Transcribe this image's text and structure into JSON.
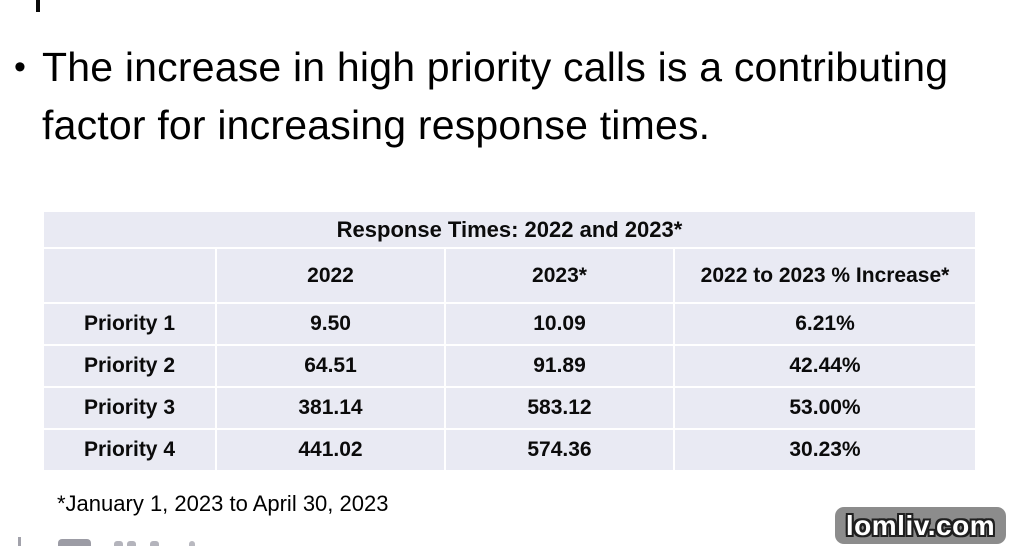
{
  "slide": {
    "bullet_marker": "•",
    "bullet_text": "The increase in high priority calls is a contributing factor for increasing response times.",
    "footnote": "*January 1, 2023 to April 30, 2023"
  },
  "table": {
    "title": "Response Times: 2022 and 2023*",
    "columns": [
      "",
      "2022",
      "2023*",
      "2022 to 2023 % Increase*"
    ],
    "rows": [
      [
        "Priority 1",
        "9.50",
        "10.09",
        "6.21%"
      ],
      [
        "Priority 2",
        "64.51",
        "91.89",
        "42.44%"
      ],
      [
        "Priority 3",
        "381.14",
        "583.12",
        "53.00%"
      ],
      [
        "Priority 4",
        "441.02",
        "574.36",
        "30.23%"
      ]
    ]
  },
  "watermark": {
    "label": "lomliv.com",
    "background": "#8c8c8c"
  },
  "colors": {
    "table_cell_bg": "#e9eaf3",
    "grid_line": "#ffffff",
    "text": "#000000"
  },
  "chart_data": {
    "type": "table",
    "title": "Response Times: 2022 and 2023*",
    "columns": [
      "",
      "2022",
      "2023*",
      "2022 to 2023 % Increase*"
    ],
    "rows": [
      [
        "Priority 1",
        "9.50",
        "10.09",
        "6.21%"
      ],
      [
        "Priority 2",
        "64.51",
        "91.89",
        "42.44%"
      ],
      [
        "Priority 3",
        "381.14",
        "583.12",
        "53.00%"
      ],
      [
        "Priority 4",
        "441.02",
        "574.36",
        "30.23%"
      ]
    ],
    "footnote": "*January 1, 2023 to April 30, 2023"
  }
}
